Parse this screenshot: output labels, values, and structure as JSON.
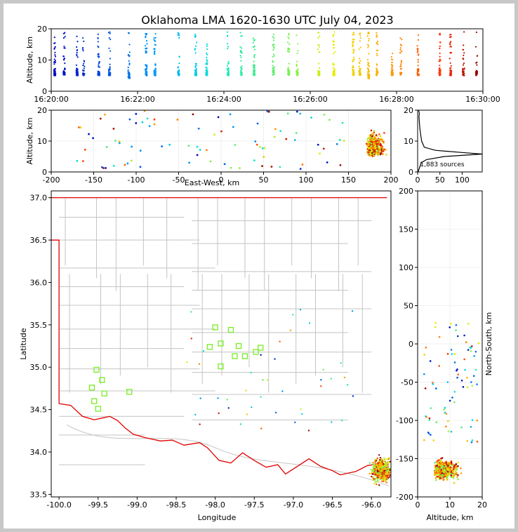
{
  "figure": {
    "title": "Oklahoma LMA 1620-1630 UTC July 04, 2023",
    "source_count_label": "1,883 sources"
  },
  "chart_data": [
    {
      "id": "alt-time",
      "type": "scatter",
      "xlabel": "",
      "ylabel": "Altitude, km",
      "x_ticks": [
        "16:20:00",
        "16:22:00",
        "16:24:00",
        "16:26:00",
        "16:28:00",
        "16:30:00"
      ],
      "xlim": [
        "16:20:00",
        "16:30:00"
      ],
      "ylim": [
        0,
        20
      ],
      "y_ticks": [
        0,
        10,
        20
      ],
      "color_scale": "time (blue to red)",
      "clusters": [
        {
          "t": 0.08,
          "z": [
            5,
            18
          ]
        },
        {
          "t": 0.3,
          "z": [
            5,
            19
          ]
        },
        {
          "t": 0.6,
          "z": [
            5,
            19
          ]
        },
        {
          "t": 0.75,
          "z": [
            5,
            19
          ]
        },
        {
          "t": 1.1,
          "z": [
            5,
            19
          ]
        },
        {
          "t": 1.35,
          "z": [
            5,
            19
          ]
        },
        {
          "t": 1.8,
          "z": [
            4,
            19
          ]
        },
        {
          "t": 2.2,
          "z": [
            5,
            19
          ]
        },
        {
          "t": 2.4,
          "z": [
            5,
            19
          ]
        },
        {
          "t": 2.95,
          "z": [
            5,
            19
          ]
        },
        {
          "t": 3.35,
          "z": [
            5,
            19
          ]
        },
        {
          "t": 3.6,
          "z": [
            5,
            19
          ]
        },
        {
          "t": 4.1,
          "z": [
            5,
            19
          ]
        },
        {
          "t": 4.4,
          "z": [
            5,
            19
          ]
        },
        {
          "t": 4.7,
          "z": [
            5,
            19
          ]
        },
        {
          "t": 5.15,
          "z": [
            5,
            19
          ]
        },
        {
          "t": 5.5,
          "z": [
            5,
            19
          ]
        },
        {
          "t": 5.7,
          "z": [
            5,
            19
          ]
        },
        {
          "t": 6.2,
          "z": [
            5,
            19
          ]
        },
        {
          "t": 6.55,
          "z": [
            5,
            19
          ]
        },
        {
          "t": 7.0,
          "z": [
            5,
            19
          ]
        },
        {
          "t": 7.15,
          "z": [
            5,
            19
          ]
        },
        {
          "t": 7.35,
          "z": [
            4,
            19
          ]
        },
        {
          "t": 7.55,
          "z": [
            5,
            19
          ]
        },
        {
          "t": 7.9,
          "z": [
            5,
            16
          ]
        },
        {
          "t": 8.1,
          "z": [
            5,
            19
          ]
        },
        {
          "t": 8.5,
          "z": [
            5,
            19
          ]
        },
        {
          "t": 9.0,
          "z": [
            5,
            19
          ]
        },
        {
          "t": 9.25,
          "z": [
            5,
            19
          ]
        },
        {
          "t": 9.55,
          "z": [
            5,
            19
          ]
        },
        {
          "t": 9.85,
          "z": [
            5,
            19
          ]
        }
      ]
    },
    {
      "id": "ew-alt",
      "type": "scatter",
      "xlabel": "East-West, km",
      "ylabel": "Altitude, km",
      "xlim": [
        -200,
        200
      ],
      "x_ticks": [
        -200,
        -150,
        -100,
        -50,
        0,
        50,
        100,
        150,
        200
      ],
      "ylim": [
        0,
        20
      ],
      "y_ticks": [
        0,
        10,
        20
      ]
    },
    {
      "id": "alt-hist",
      "type": "line",
      "xlabel": "",
      "ylabel": "",
      "xlim": [
        0,
        145
      ],
      "x_ticks": [
        0,
        50,
        100
      ],
      "ylim": [
        0,
        20
      ],
      "y_ticks": [
        0,
        10,
        20
      ],
      "counts": [
        [
          1,
          0
        ],
        [
          8,
          3
        ],
        [
          20,
          4
        ],
        [
          60,
          5
        ],
        [
          145,
          5.8
        ],
        [
          100,
          6.3
        ],
        [
          40,
          7
        ],
        [
          15,
          8
        ],
        [
          12,
          9
        ],
        [
          9,
          10
        ],
        [
          7,
          12
        ],
        [
          5,
          14
        ],
        [
          4,
          16
        ],
        [
          3,
          18
        ],
        [
          4,
          19
        ],
        [
          2,
          20
        ]
      ]
    },
    {
      "id": "map",
      "type": "scatter",
      "xlabel": "Longitude",
      "ylabel": "Latitude",
      "xlim": [
        -100.1,
        -95.75
      ],
      "x_ticks": [
        -100.0,
        -99.5,
        -99.0,
        -98.5,
        -98.0,
        -97.5,
        -97.0,
        -96.5,
        -96.0
      ],
      "ylim": [
        33.47,
        37.08
      ],
      "y_ticks": [
        33.5,
        34.0,
        34.5,
        35.0,
        35.5,
        36.0,
        36.5,
        37.0
      ],
      "stations": [
        [
          -99.52,
          34.97
        ],
        [
          -99.45,
          34.85
        ],
        [
          -99.58,
          34.76
        ],
        [
          -99.42,
          34.69
        ],
        [
          -99.55,
          34.6
        ],
        [
          -99.5,
          34.51
        ],
        [
          -99.1,
          34.71
        ],
        [
          -98.0,
          35.47
        ],
        [
          -97.93,
          35.28
        ],
        [
          -98.07,
          35.24
        ],
        [
          -97.8,
          35.44
        ],
        [
          -97.7,
          35.25
        ],
        [
          -97.62,
          35.13
        ],
        [
          -97.48,
          35.18
        ],
        [
          -97.42,
          35.23
        ],
        [
          -97.75,
          35.13
        ],
        [
          -97.93,
          35.01
        ]
      ]
    },
    {
      "id": "alt-ns",
      "type": "scatter",
      "xlabel": "Altitude, km",
      "ylabel": "North-South, km",
      "xlim": [
        0,
        20
      ],
      "x_ticks": [
        0,
        10,
        20
      ],
      "ylim": [
        -200,
        200
      ],
      "y_ticks": [
        -200,
        -150,
        -100,
        -50,
        0,
        50,
        100,
        150,
        200
      ]
    }
  ]
}
